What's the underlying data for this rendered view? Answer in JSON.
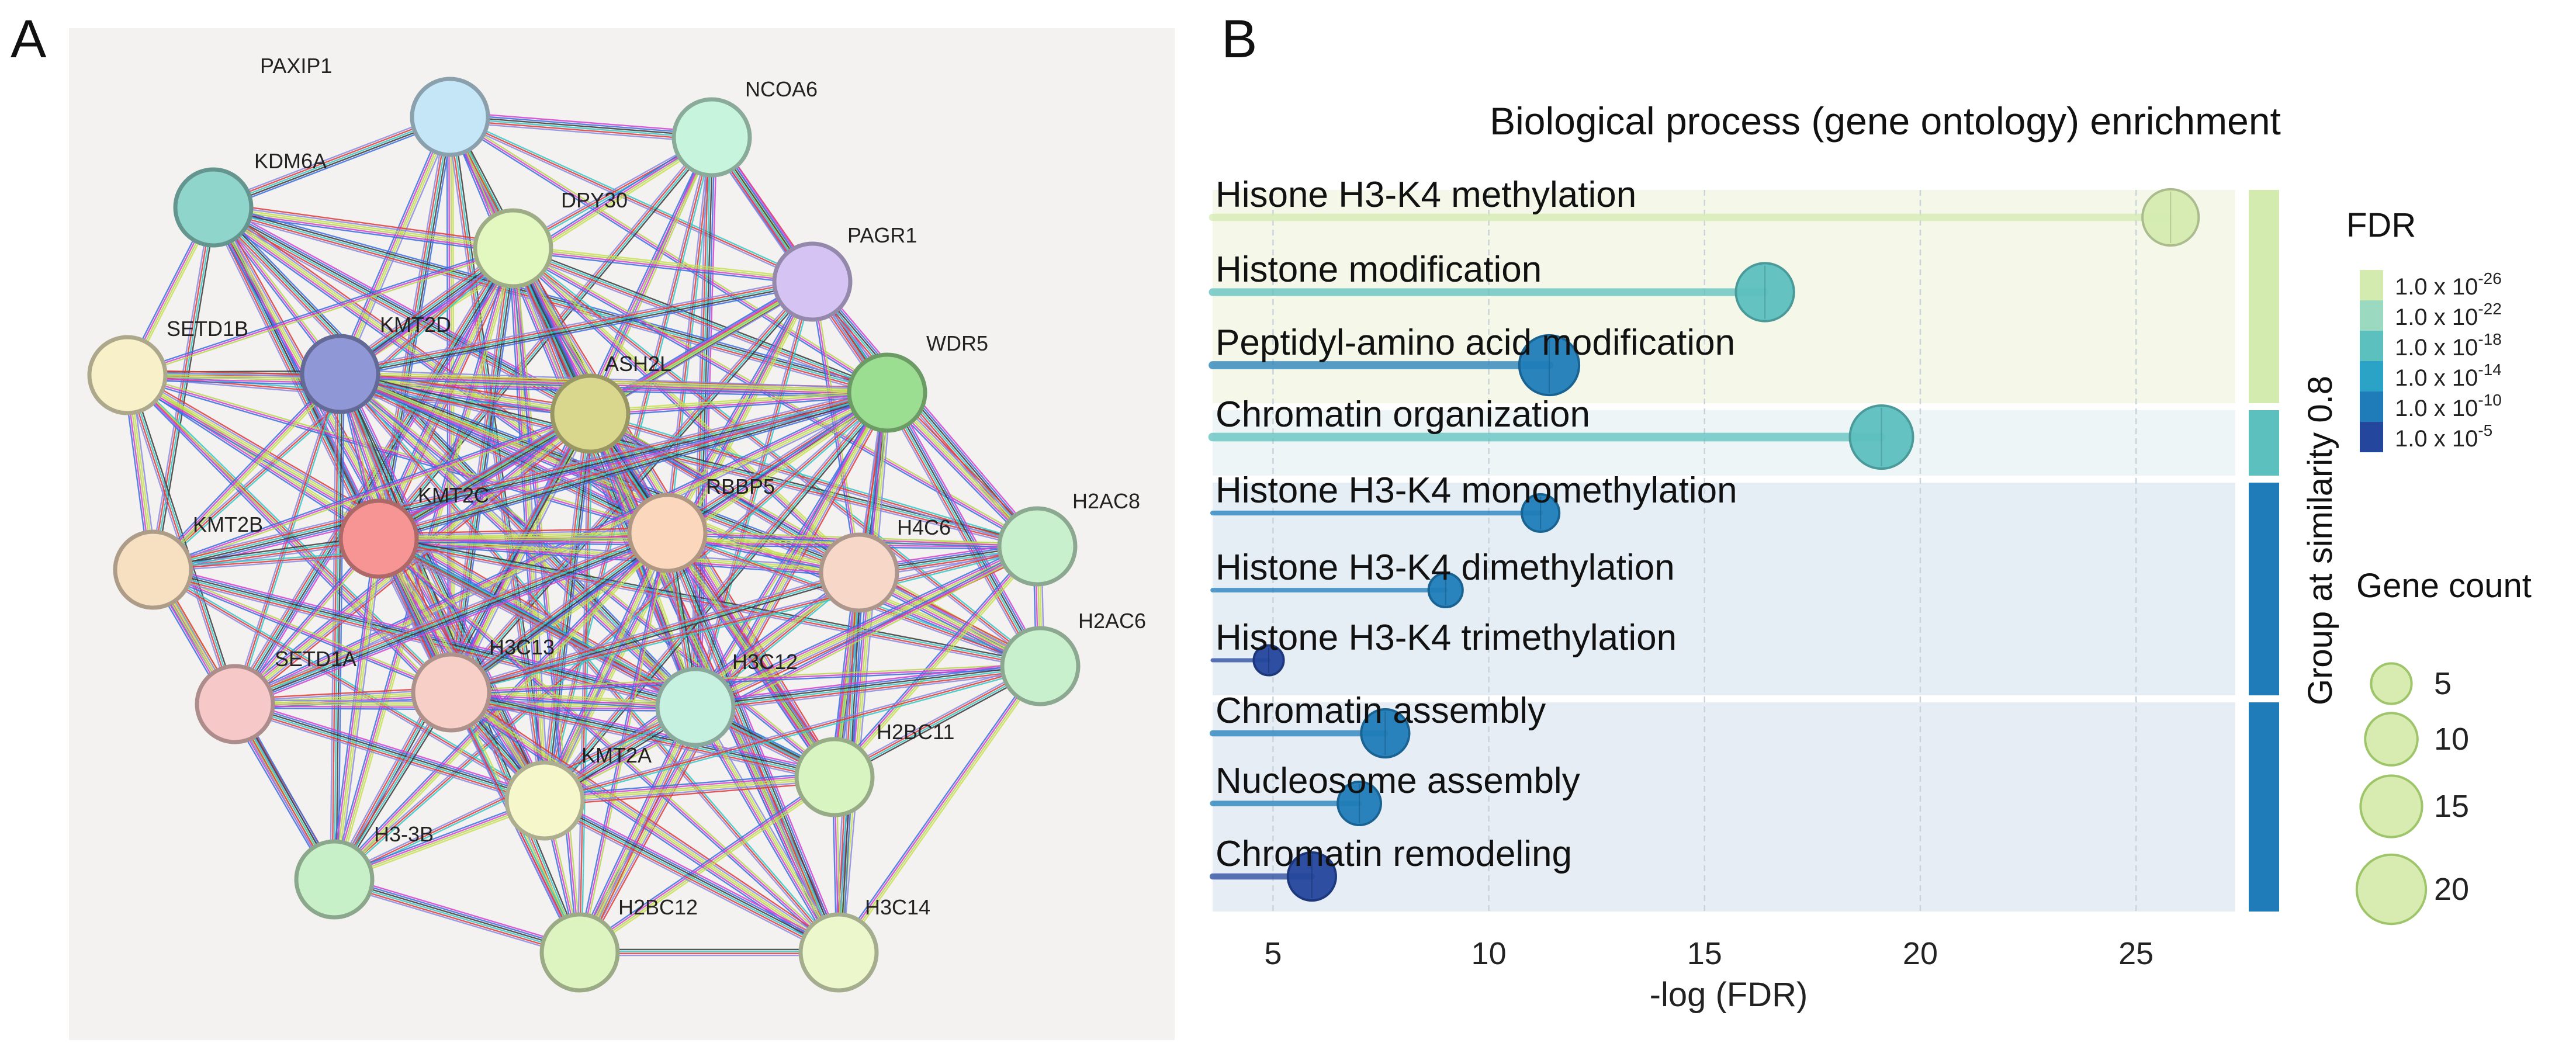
{
  "panels": {
    "a": "A",
    "b": "B"
  },
  "colors": {
    "net_bg": "#f3f2f0",
    "group1_bg": "#f5f8e8",
    "group2_bg": "#eef5f6",
    "group3_bg": "#e6eef5",
    "group4_bg": "#e6edf5",
    "group1_bar": "#d4ebb0",
    "group2_bar": "#5cc0bf",
    "group3_bar": "#1f7cb8",
    "group4_bar": "#1f7cb8"
  },
  "network": {
    "nodes": [
      {
        "id": "PAXIP1",
        "label": "PAXIP1",
        "color": "#c5e6f7"
      },
      {
        "id": "NCOA6",
        "label": "NCOA6",
        "color": "#c6f4dc"
      },
      {
        "id": "KDM6A",
        "label": "KDM6A",
        "color": "#8fd5cc"
      },
      {
        "id": "DPY30",
        "label": "DPY30",
        "color": "#e3f7c0"
      },
      {
        "id": "PAGR1",
        "label": "PAGR1",
        "color": "#d4c3f3"
      },
      {
        "id": "SETD1B",
        "label": "SETD1B",
        "color": "#f7f0c8"
      },
      {
        "id": "KMT2D",
        "label": "KMT2D",
        "color": "#8f97d6"
      },
      {
        "id": "ASH2L",
        "label": "ASH2L",
        "color": "#d9d68e"
      },
      {
        "id": "WDR5",
        "label": "WDR5",
        "color": "#9bdd91"
      },
      {
        "id": "KMT2B",
        "label": "KMT2B",
        "color": "#f7dfc1"
      },
      {
        "id": "KMT2C",
        "label": "KMT2C",
        "color": "#f79595"
      },
      {
        "id": "RBBP5",
        "label": "RBBP5",
        "color": "#fbd8bd"
      },
      {
        "id": "H4C6",
        "label": "H4C6",
        "color": "#f7d8c8"
      },
      {
        "id": "H2AC8",
        "label": "H2AC8",
        "color": "#c8f0cd"
      },
      {
        "id": "SETD1A",
        "label": "SETD1A",
        "color": "#f7c8c8"
      },
      {
        "id": "H3C13",
        "label": "H3C13",
        "color": "#f7cfc6"
      },
      {
        "id": "H3C12",
        "label": "H3C12",
        "color": "#c6f0e0"
      },
      {
        "id": "H2AC6",
        "label": "H2AC6",
        "color": "#c8f0cd"
      },
      {
        "id": "H2BC11",
        "label": "H2BC11",
        "color": "#d8f4c0"
      },
      {
        "id": "KMT2A",
        "label": "KMT2A",
        "color": "#f7f7cc"
      },
      {
        "id": "H3-3B",
        "label": "H3-3B",
        "color": "#c8f0c8"
      },
      {
        "id": "H2BC12",
        "label": "H2BC12",
        "color": "#def4c0"
      },
      {
        "id": "H3C14",
        "label": "H3C14",
        "color": "#ecf7cc"
      }
    ],
    "edge_colors": [
      "#b9d64f",
      "#d43fd4",
      "#3a6ee0",
      "#3a3a3a",
      "#31c8c8",
      "#e03a3a",
      "#8a8ae0",
      "#c8e050"
    ]
  },
  "chart_data": {
    "type": "lollipop",
    "title": "Biological process (gene ontology) enrichment",
    "xlabel": "-log (FDR)",
    "xlim": [
      3.6,
      27.3
    ],
    "xticks": [
      5,
      10,
      15,
      20,
      25
    ],
    "grid": true,
    "group_axis_title": "Group at similarity 0.8",
    "terms": [
      {
        "label": "Hisone H3-K4 methylation",
        "value": 25.8,
        "gene_count": 12,
        "fdr_log": 26,
        "group": 1
      },
      {
        "label": "Histone modification",
        "value": 16.4,
        "gene_count": 13,
        "fdr_log": 16,
        "group": 1
      },
      {
        "label": "Peptidyl-amino acid modification",
        "value": 11.4,
        "gene_count": 14,
        "fdr_log": 11,
        "group": 1
      },
      {
        "label": "Chromatin organization",
        "value": 19.1,
        "gene_count": 16,
        "fdr_log": 19,
        "group": 2
      },
      {
        "label": "Histone H3-K4 monomethylation",
        "value": 11.2,
        "gene_count": 4,
        "fdr_log": 11,
        "group": 3
      },
      {
        "label": "Histone H3-K4 dimethylation",
        "value": 9.0,
        "gene_count": 3,
        "fdr_log": 9,
        "group": 3
      },
      {
        "label": "Histone H3-K4 trimethylation",
        "value": 4.9,
        "gene_count": 2,
        "fdr_log": 5,
        "group": 3
      },
      {
        "label": "Chromatin assembly",
        "value": 7.6,
        "gene_count": 8,
        "fdr_log": 8,
        "group": 4
      },
      {
        "label": "Nucleosome assembly",
        "value": 7.0,
        "gene_count": 6,
        "fdr_log": 7,
        "group": 4
      },
      {
        "label": "Chromatin remodeling",
        "value": 5.9,
        "gene_count": 8,
        "fdr_log": 6,
        "group": 4
      }
    ],
    "fdr_legend": {
      "title": "FDR",
      "colors": [
        "#d4ebb0",
        "#9bd9c0",
        "#5cc0bf",
        "#2aa3c6",
        "#1f7cb8",
        "#24469c"
      ],
      "mantissa": "1.0 x 10",
      "exponents": [
        "-26",
        "-22",
        "-18",
        "-14",
        "-10",
        "-5"
      ]
    },
    "size_legend": {
      "title": "Gene count",
      "values": [
        5,
        10,
        15,
        20
      ],
      "labels": [
        "5",
        "10",
        "15",
        "20"
      ]
    }
  }
}
